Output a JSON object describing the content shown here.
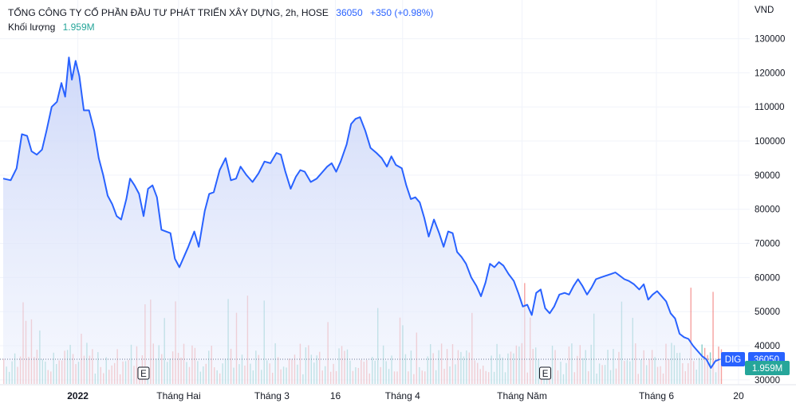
{
  "header": {
    "title": "TỔNG CÔNG TY CỔ PHẦN ĐẦU TƯ PHÁT TRIỂN XÂY DỰNG, 2h, HOSE",
    "last_price": "36050",
    "change": "+350 (+0.98%)",
    "volume_label": "Khối lượng",
    "volume_value": "1.959M"
  },
  "axis": {
    "currency": "VND",
    "symbol_tag": "DIG",
    "price_tag": "36050",
    "volume_tag": "1.959M",
    "event_markers": [
      "E",
      "E"
    ]
  },
  "colors": {
    "line": "#2962ff",
    "area_top": "#c9d4f8",
    "volume_up": "#26a69a",
    "volume_down": "#ef5350",
    "tag_bg": "#2962ff",
    "volume_tag_bg": "#26a69a"
  },
  "chart_data": {
    "type": "area",
    "y_unit": "VND",
    "ylim": [
      26000,
      132000
    ],
    "y_ticks": [
      30000,
      40000,
      50000,
      60000,
      70000,
      80000,
      90000,
      100000,
      110000,
      120000,
      130000
    ],
    "x_ticks": [
      {
        "label": "2022",
        "t": 0.1
      },
      {
        "label": "Tháng Hai",
        "t": 0.235
      },
      {
        "label": "Tháng 3",
        "t": 0.36
      },
      {
        "label": "16",
        "t": 0.445
      },
      {
        "label": "Tháng 4",
        "t": 0.535
      },
      {
        "label": "Tháng Năm",
        "t": 0.695
      },
      {
        "label": "Tháng 6",
        "t": 0.875
      },
      {
        "label": "20",
        "t": 0.985
      }
    ],
    "last_value": 36050,
    "series": [
      {
        "values": [
          [
            0.0,
            89000
          ],
          [
            0.01,
            88500
          ],
          [
            0.018,
            92000
          ],
          [
            0.025,
            102000
          ],
          [
            0.032,
            101500
          ],
          [
            0.038,
            97000
          ],
          [
            0.045,
            96000
          ],
          [
            0.052,
            97500
          ],
          [
            0.058,
            103000
          ],
          [
            0.065,
            110000
          ],
          [
            0.072,
            111500
          ],
          [
            0.078,
            117000
          ],
          [
            0.083,
            113000
          ],
          [
            0.088,
            124500
          ],
          [
            0.092,
            118000
          ],
          [
            0.097,
            123500
          ],
          [
            0.102,
            119000
          ],
          [
            0.108,
            109000
          ],
          [
            0.115,
            109000
          ],
          [
            0.122,
            103000
          ],
          [
            0.128,
            95000
          ],
          [
            0.134,
            90000
          ],
          [
            0.14,
            84000
          ],
          [
            0.146,
            81500
          ],
          [
            0.152,
            78000
          ],
          [
            0.158,
            77000
          ],
          [
            0.165,
            83000
          ],
          [
            0.17,
            89000
          ],
          [
            0.176,
            87000
          ],
          [
            0.182,
            84500
          ],
          [
            0.188,
            78000
          ],
          [
            0.194,
            86000
          ],
          [
            0.2,
            87000
          ],
          [
            0.206,
            83500
          ],
          [
            0.212,
            74000
          ],
          [
            0.218,
            73500
          ],
          [
            0.224,
            73000
          ],
          [
            0.23,
            65500
          ],
          [
            0.236,
            63000
          ],
          [
            0.242,
            66000
          ],
          [
            0.248,
            69000
          ],
          [
            0.256,
            73500
          ],
          [
            0.262,
            69000
          ],
          [
            0.27,
            79500
          ],
          [
            0.276,
            84500
          ],
          [
            0.282,
            85000
          ],
          [
            0.29,
            91500
          ],
          [
            0.298,
            95000
          ],
          [
            0.305,
            88500
          ],
          [
            0.312,
            89000
          ],
          [
            0.318,
            92500
          ],
          [
            0.326,
            90000
          ],
          [
            0.334,
            88000
          ],
          [
            0.342,
            90500
          ],
          [
            0.35,
            94000
          ],
          [
            0.358,
            93500
          ],
          [
            0.366,
            96500
          ],
          [
            0.372,
            96000
          ],
          [
            0.378,
            91000
          ],
          [
            0.385,
            86000
          ],
          [
            0.392,
            89500
          ],
          [
            0.398,
            91500
          ],
          [
            0.404,
            91000
          ],
          [
            0.412,
            88000
          ],
          [
            0.42,
            89000
          ],
          [
            0.428,
            91000
          ],
          [
            0.434,
            92500
          ],
          [
            0.44,
            93500
          ],
          [
            0.446,
            91000
          ],
          [
            0.452,
            94000
          ],
          [
            0.46,
            99000
          ],
          [
            0.466,
            105000
          ],
          [
            0.472,
            106500
          ],
          [
            0.478,
            107000
          ],
          [
            0.485,
            103000
          ],
          [
            0.492,
            98000
          ],
          [
            0.5,
            96500
          ],
          [
            0.507,
            95000
          ],
          [
            0.514,
            92500
          ],
          [
            0.52,
            95500
          ],
          [
            0.526,
            93000
          ],
          [
            0.534,
            92000
          ],
          [
            0.54,
            87000
          ],
          [
            0.546,
            83000
          ],
          [
            0.552,
            83500
          ],
          [
            0.558,
            82000
          ],
          [
            0.564,
            77500
          ],
          [
            0.57,
            72000
          ],
          [
            0.577,
            77000
          ],
          [
            0.584,
            73000
          ],
          [
            0.59,
            69000
          ],
          [
            0.596,
            73500
          ],
          [
            0.602,
            73000
          ],
          [
            0.608,
            67500
          ],
          [
            0.614,
            66000
          ],
          [
            0.62,
            64000
          ],
          [
            0.627,
            60000
          ],
          [
            0.634,
            57500
          ],
          [
            0.64,
            54500
          ],
          [
            0.646,
            58500
          ],
          [
            0.652,
            64000
          ],
          [
            0.658,
            63000
          ],
          [
            0.664,
            64500
          ],
          [
            0.67,
            63500
          ],
          [
            0.677,
            61000
          ],
          [
            0.684,
            59000
          ],
          [
            0.69,
            55500
          ],
          [
            0.696,
            51500
          ],
          [
            0.702,
            52000
          ],
          [
            0.708,
            49000
          ],
          [
            0.714,
            55500
          ],
          [
            0.72,
            56500
          ],
          [
            0.726,
            51000
          ],
          [
            0.732,
            49500
          ],
          [
            0.738,
            51500
          ],
          [
            0.745,
            55000
          ],
          [
            0.752,
            55500
          ],
          [
            0.758,
            55000
          ],
          [
            0.764,
            57500
          ],
          [
            0.77,
            59500
          ],
          [
            0.776,
            57500
          ],
          [
            0.782,
            55000
          ],
          [
            0.788,
            57000
          ],
          [
            0.794,
            59500
          ],
          [
            0.8,
            60000
          ],
          [
            0.807,
            60500
          ],
          [
            0.814,
            61000
          ],
          [
            0.82,
            61500
          ],
          [
            0.826,
            60500
          ],
          [
            0.832,
            59500
          ],
          [
            0.838,
            59000
          ],
          [
            0.845,
            58000
          ],
          [
            0.852,
            56500
          ],
          [
            0.858,
            58000
          ],
          [
            0.864,
            53500
          ],
          [
            0.87,
            55000
          ],
          [
            0.876,
            56000
          ],
          [
            0.882,
            54500
          ],
          [
            0.888,
            53000
          ],
          [
            0.894,
            49500
          ],
          [
            0.9,
            48000
          ],
          [
            0.906,
            43500
          ],
          [
            0.912,
            42500
          ],
          [
            0.918,
            42000
          ],
          [
            0.924,
            40000
          ],
          [
            0.93,
            38500
          ],
          [
            0.936,
            37000
          ],
          [
            0.942,
            36000
          ],
          [
            0.948,
            33500
          ],
          [
            0.954,
            35500
          ],
          [
            0.96,
            36050
          ]
        ]
      }
    ],
    "volume_series": {
      "note_units": "relative",
      "max": 1.0
    }
  }
}
